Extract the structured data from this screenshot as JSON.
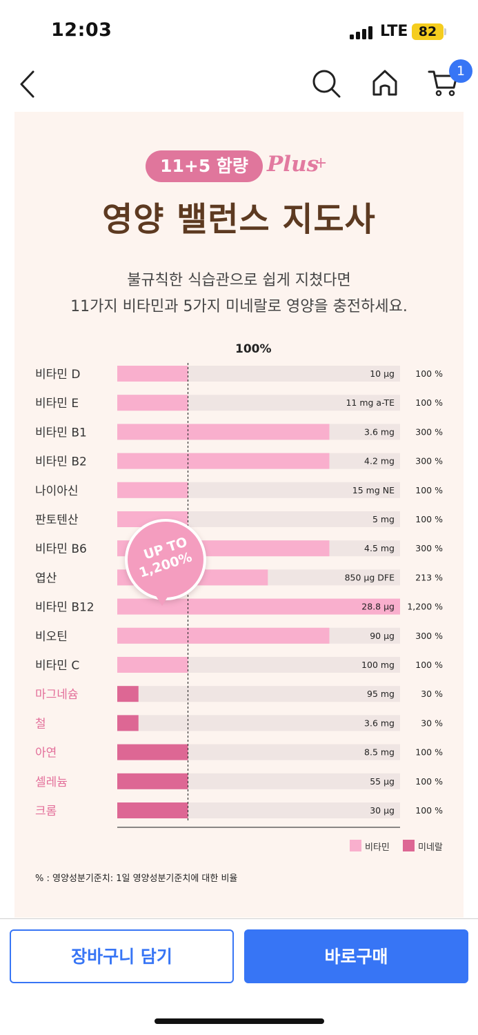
{
  "status_bar": {
    "time": "12:03",
    "network": "LTE",
    "battery": "82"
  },
  "nav": {
    "cart_count": "1"
  },
  "banner": {
    "tag": "11+5 함량",
    "tag_script": "Plus",
    "tag_plus": "+",
    "title": "영양 밸런스 지도사",
    "subtitle_line1": "불규칙한 식습관으로 쉽게 지쳤다면",
    "subtitle_line2": "11가지 비타민과 5가지 미네랄로 영양을 충전하세요.",
    "bubble_line1": "UP TO",
    "bubble_line2": "1,200%",
    "footnote": "% : 영양성분기준치: 1일 영양성분기준치에 대한 비율"
  },
  "chart_data": {
    "type": "bar",
    "reference_label": "100%",
    "colors": {
      "vitamin": "#f9afcd",
      "mineral": "#dd6794",
      "track": "#efe5e3",
      "vitamin_label": "#333333",
      "mineral_label": "#e36f9a"
    },
    "legend": [
      {
        "key": "vitamin",
        "label": "비타민"
      },
      {
        "key": "mineral",
        "label": "미네랄"
      }
    ],
    "rows": [
      {
        "name": "비타민 D",
        "amount": "10 µg",
        "percent_label": "100 %",
        "percent": 100,
        "group": "vitamin"
      },
      {
        "name": "비타민 E",
        "amount": "11 mg a-TE",
        "percent_label": "100 %",
        "percent": 100,
        "group": "vitamin"
      },
      {
        "name": "비타민 B1",
        "amount": "3.6 mg",
        "percent_label": "300 %",
        "percent": 300,
        "group": "vitamin"
      },
      {
        "name": "비타민 B2",
        "amount": "4.2 mg",
        "percent_label": "300 %",
        "percent": 300,
        "group": "vitamin"
      },
      {
        "name": "나이아신",
        "amount": "15 mg NE",
        "percent_label": "100 %",
        "percent": 100,
        "group": "vitamin"
      },
      {
        "name": "판토텐산",
        "amount": "5 mg",
        "percent_label": "100 %",
        "percent": 100,
        "group": "vitamin"
      },
      {
        "name": "비타민 B6",
        "amount": "4.5 mg",
        "percent_label": "300 %",
        "percent": 300,
        "group": "vitamin"
      },
      {
        "name": "엽산",
        "amount": "850 µg DFE",
        "percent_label": "213 %",
        "percent": 213,
        "group": "vitamin"
      },
      {
        "name": "비타민 B12",
        "amount": "28.8 µg",
        "percent_label": "1,200 %",
        "percent": 1200,
        "group": "vitamin"
      },
      {
        "name": "비오틴",
        "amount": "90 µg",
        "percent_label": "300 %",
        "percent": 300,
        "group": "vitamin"
      },
      {
        "name": "비타민 C",
        "amount": "100 mg",
        "percent_label": "100 %",
        "percent": 100,
        "group": "vitamin"
      },
      {
        "name": "마그네슘",
        "amount": "95 mg",
        "percent_label": "30 %",
        "percent": 30,
        "group": "mineral"
      },
      {
        "name": "철",
        "amount": "3.6 mg",
        "percent_label": "30 %",
        "percent": 30,
        "group": "mineral"
      },
      {
        "name": "아연",
        "amount": "8.5 mg",
        "percent_label": "100 %",
        "percent": 100,
        "group": "mineral"
      },
      {
        "name": "셀레늄",
        "amount": "55 µg",
        "percent_label": "100 %",
        "percent": 100,
        "group": "mineral"
      },
      {
        "name": "크롬",
        "amount": "30 µg",
        "percent_label": "100 %",
        "percent": 100,
        "group": "mineral"
      }
    ]
  },
  "actions": {
    "add_to_cart": "장바구니 담기",
    "buy_now": "바로구매"
  }
}
